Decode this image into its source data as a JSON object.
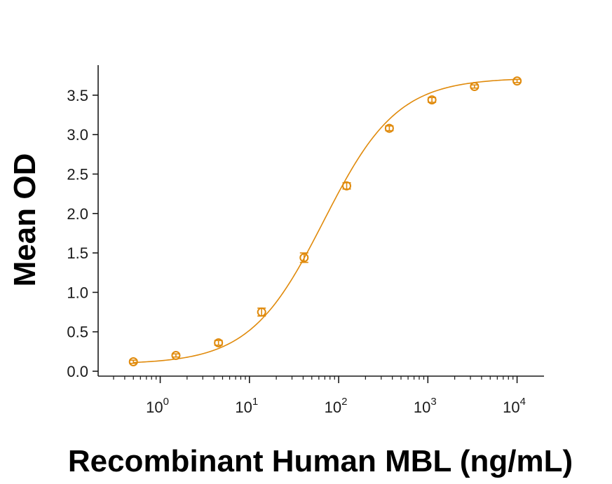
{
  "chart_data": {
    "type": "scatter",
    "title": "",
    "xlabel": "Recombinant Human MBL (ng/mL)",
    "ylabel": "Mean OD",
    "x_scale": "log10",
    "xlim": [
      0.3,
      15000
    ],
    "ylim": [
      0.0,
      3.8
    ],
    "x_ticks": [
      {
        "base": "10",
        "exp": "0"
      },
      {
        "base": "10",
        "exp": "1"
      },
      {
        "base": "10",
        "exp": "2"
      },
      {
        "base": "10",
        "exp": "3"
      },
      {
        "base": "10",
        "exp": "4"
      }
    ],
    "y_ticks": [
      "0.0",
      "0.5",
      "1.0",
      "1.5",
      "2.0",
      "2.5",
      "3.0",
      "3.5"
    ],
    "grid": false,
    "legend": "none",
    "color": "#E08A0B",
    "series": [
      {
        "x": [
          0.5,
          1.5,
          4.5,
          13.7,
          41,
          123,
          370,
          1111,
          3333,
          10000
        ],
        "y": [
          0.12,
          0.2,
          0.36,
          0.75,
          1.44,
          2.35,
          3.08,
          3.44,
          3.61,
          3.68
        ],
        "err": [
          0.02,
          0.02,
          0.03,
          0.05,
          0.06,
          0.04,
          0.03,
          0.03,
          0.02,
          0.02
        ],
        "fit": {
          "type": "4PL",
          "bottom": 0.09,
          "top": 3.72,
          "ec50": 68,
          "hill": 1.05
        }
      }
    ]
  }
}
